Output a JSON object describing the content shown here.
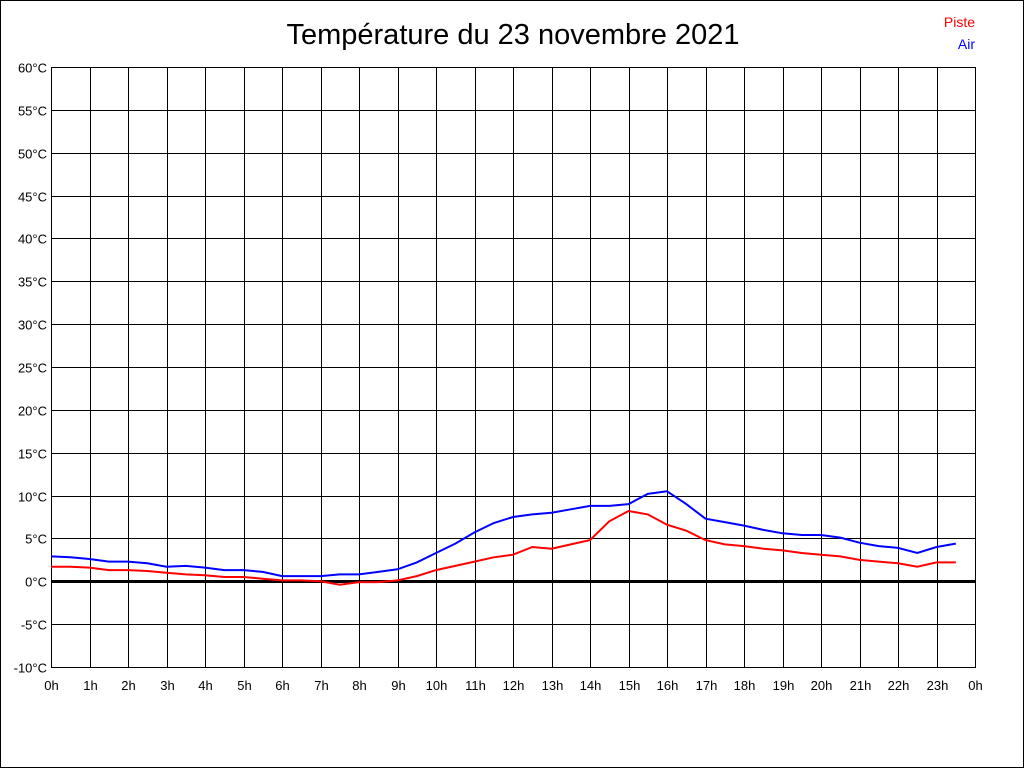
{
  "chart_data": {
    "type": "line",
    "title": "Température du 23 novembre 2021",
    "xlabel": "",
    "ylabel": "",
    "xlim": [
      0,
      24
    ],
    "ylim": [
      -10,
      60
    ],
    "grid": true,
    "legend_position": "top-right",
    "x_tick_labels": [
      "0h",
      "1h",
      "2h",
      "3h",
      "4h",
      "5h",
      "6h",
      "7h",
      "8h",
      "9h",
      "10h",
      "11h",
      "12h",
      "13h",
      "14h",
      "15h",
      "16h",
      "17h",
      "18h",
      "19h",
      "20h",
      "21h",
      "22h",
      "23h",
      "0h"
    ],
    "y_ticks": [
      -10,
      -5,
      0,
      5,
      10,
      15,
      20,
      25,
      30,
      35,
      40,
      45,
      50,
      55,
      60
    ],
    "y_tick_suffix": "°C",
    "x": [
      0,
      0.5,
      1,
      1.5,
      2,
      2.5,
      3,
      3.5,
      4,
      4.5,
      5,
      5.5,
      6,
      6.5,
      7,
      7.5,
      8,
      8.5,
      9,
      9.5,
      10,
      10.5,
      11,
      11.5,
      12,
      12.5,
      13,
      13.5,
      14,
      14.5,
      15,
      15.5,
      16,
      16.5,
      17,
      17.5,
      18,
      18.5,
      19,
      19.5,
      20,
      20.5,
      21,
      21.5,
      22,
      22.5,
      23,
      23.5
    ],
    "series": [
      {
        "name": "Piste",
        "color": "#ff0000",
        "values": [
          1.7,
          1.7,
          1.6,
          1.3,
          1.3,
          1.2,
          1.0,
          0.8,
          0.7,
          0.5,
          0.5,
          0.3,
          0.1,
          0.1,
          0.0,
          -0.4,
          -0.1,
          -0.1,
          0.1,
          0.6,
          1.3,
          1.8,
          2.3,
          2.8,
          3.1,
          4.0,
          3.8,
          4.3,
          4.8,
          7.0,
          8.2,
          7.8,
          6.6,
          5.9,
          4.8,
          4.3,
          4.1,
          3.8,
          3.6,
          3.3,
          3.1,
          2.9,
          2.5,
          2.3,
          2.1,
          1.7,
          2.2,
          2.2
        ]
      },
      {
        "name": "Air",
        "color": "#0000ff",
        "values": [
          2.9,
          2.8,
          2.6,
          2.3,
          2.3,
          2.1,
          1.7,
          1.8,
          1.6,
          1.3,
          1.3,
          1.1,
          0.6,
          0.6,
          0.6,
          0.8,
          0.8,
          1.1,
          1.4,
          2.2,
          3.3,
          4.4,
          5.7,
          6.8,
          7.5,
          7.8,
          8.0,
          8.4,
          8.8,
          8.8,
          9.0,
          10.2,
          10.5,
          9.0,
          7.3,
          6.9,
          6.5,
          6.0,
          5.6,
          5.4,
          5.4,
          5.1,
          4.5,
          4.1,
          3.9,
          3.3,
          4.0,
          4.4
        ]
      }
    ]
  }
}
